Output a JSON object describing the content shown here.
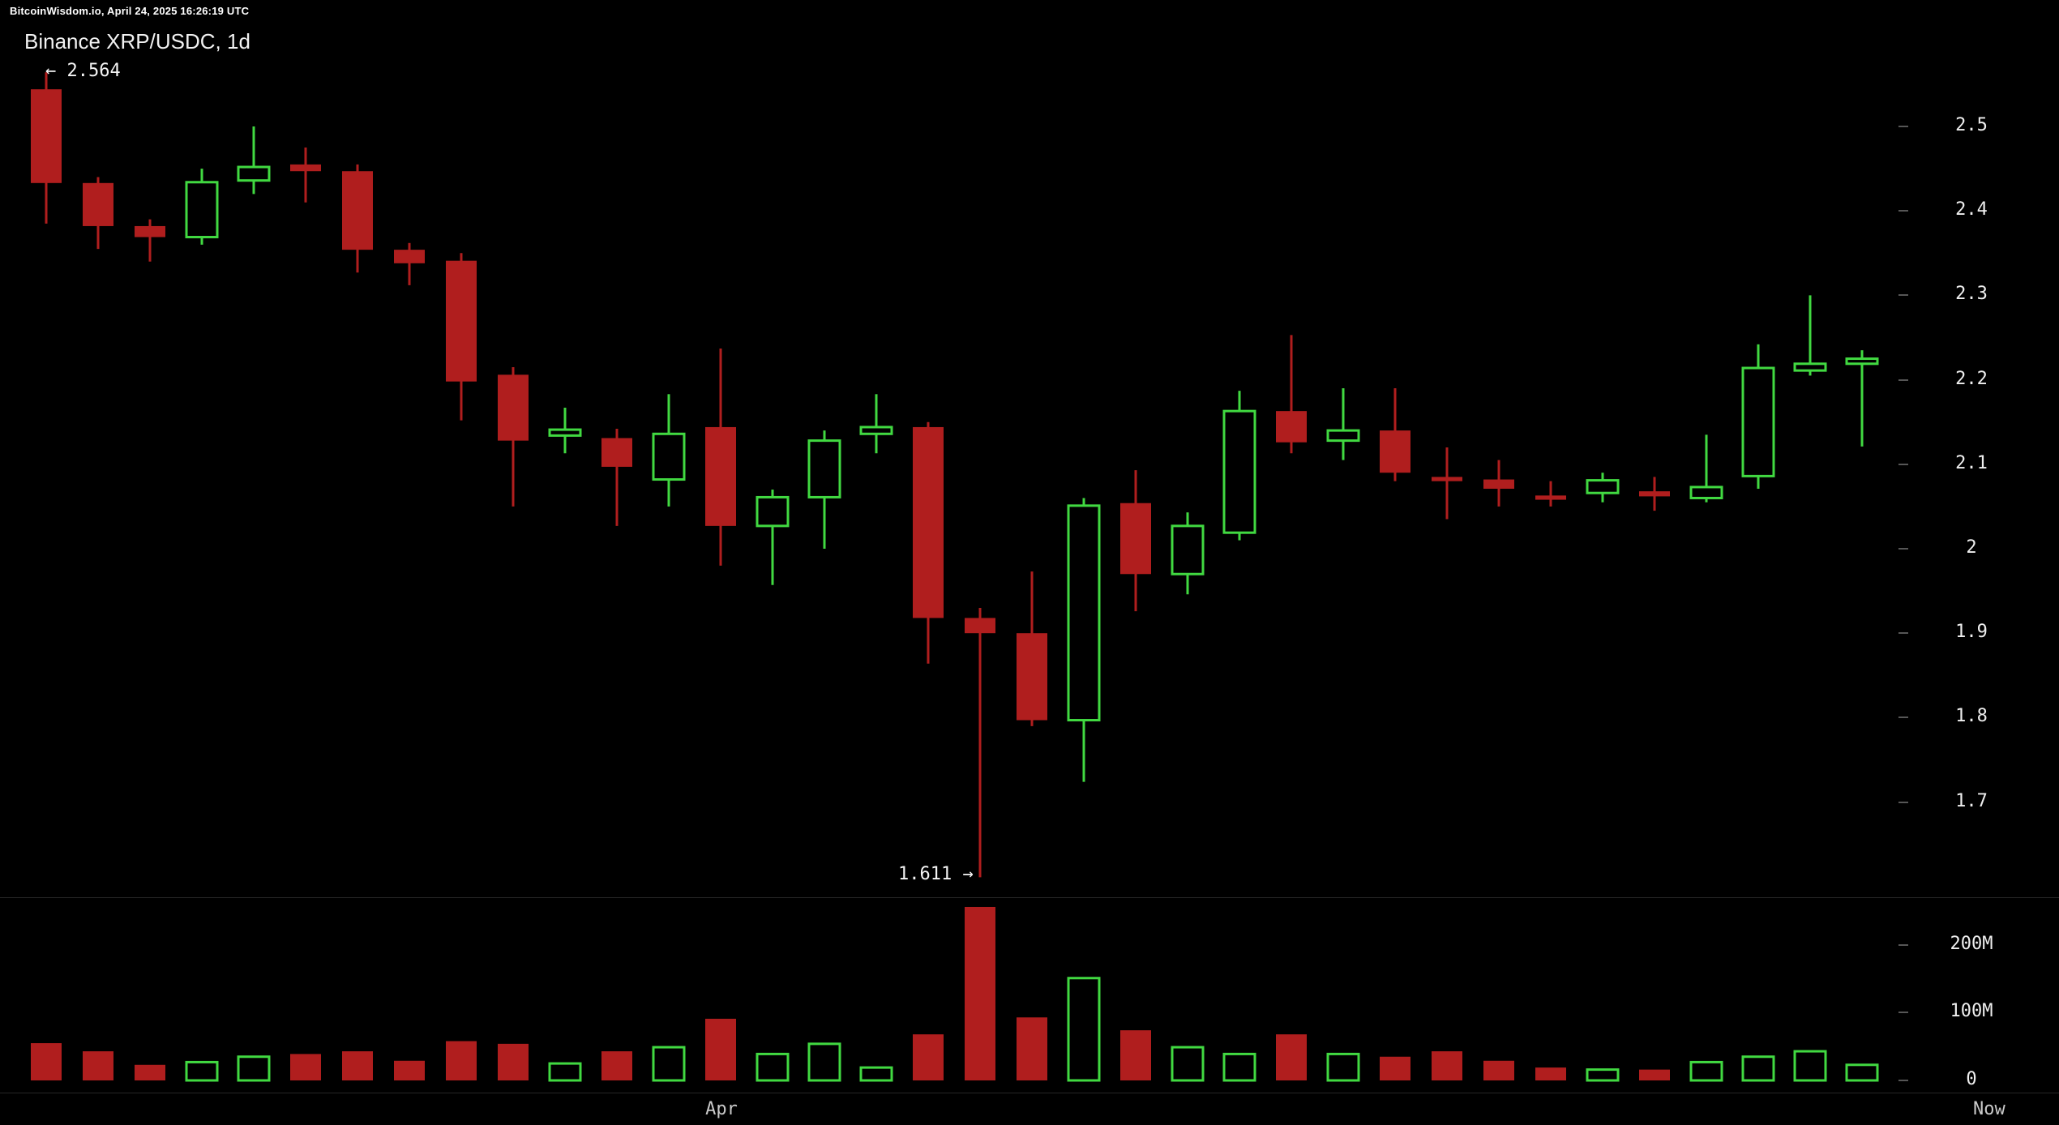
{
  "meta": {
    "status_bar": "BitcoinWisdom.io, April 24, 2025 16:26:19 UTC",
    "title": "Binance XRP/USDC, 1d"
  },
  "annotations": {
    "high_label": "← 2.564",
    "low_label": "1.611 →"
  },
  "axes": {
    "price_ticks": [
      {
        "label": "2.5",
        "value": 2.5
      },
      {
        "label": "2.4",
        "value": 2.4
      },
      {
        "label": "2.3",
        "value": 2.3
      },
      {
        "label": "2.2",
        "value": 2.2
      },
      {
        "label": "2.1",
        "value": 2.1
      },
      {
        "label": "2",
        "value": 2.0
      },
      {
        "label": "1.9",
        "value": 1.9
      },
      {
        "label": "1.8",
        "value": 1.8
      },
      {
        "label": "1.7",
        "value": 1.7
      }
    ],
    "volume_ticks": [
      {
        "label": "200M",
        "value_m": 200
      },
      {
        "label": "100M",
        "value_m": 100
      },
      {
        "label": "0",
        "value_m": 0
      }
    ],
    "month_label": "Apr",
    "now_label": "Now"
  },
  "colors": {
    "up": "#41d941",
    "down": "#b01e1e",
    "background": "#000000",
    "text": "#f2f2f2",
    "tick": "#565656",
    "divider": "#262626"
  },
  "chart_data": {
    "type": "candlestick+volume",
    "title": "Binance XRP/USDC, 1d",
    "exchange": "Binance",
    "pair": "XRP/USDC",
    "interval": "1d",
    "high_marker": 2.564,
    "low_marker": 1.611,
    "price_axis_range": [
      1.6,
      2.58
    ],
    "volume_axis_range_m": [
      0,
      260
    ],
    "legend_position": "none",
    "grid": false,
    "candles": [
      {
        "o": 2.544,
        "h": 2.564,
        "l": 2.385,
        "c": 2.433,
        "v_m": 55
      },
      {
        "o": 2.433,
        "h": 2.44,
        "l": 2.355,
        "c": 2.382,
        "v_m": 43
      },
      {
        "o": 2.382,
        "h": 2.39,
        "l": 2.34,
        "c": 2.369,
        "v_m": 23
      },
      {
        "o": 2.369,
        "h": 2.45,
        "l": 2.36,
        "c": 2.434,
        "v_m": 27
      },
      {
        "o": 2.436,
        "h": 2.5,
        "l": 2.42,
        "c": 2.452,
        "v_m": 35
      },
      {
        "o": 2.455,
        "h": 2.475,
        "l": 2.41,
        "c": 2.447,
        "v_m": 39
      },
      {
        "o": 2.447,
        "h": 2.455,
        "l": 2.327,
        "c": 2.354,
        "v_m": 43
      },
      {
        "o": 2.354,
        "h": 2.362,
        "l": 2.312,
        "c": 2.338,
        "v_m": 29
      },
      {
        "o": 2.341,
        "h": 2.35,
        "l": 2.152,
        "c": 2.198,
        "v_m": 58
      },
      {
        "o": 2.206,
        "h": 2.215,
        "l": 2.05,
        "c": 2.128,
        "v_m": 54
      },
      {
        "o": 2.134,
        "h": 2.167,
        "l": 2.113,
        "c": 2.141,
        "v_m": 25
      },
      {
        "o": 2.131,
        "h": 2.142,
        "l": 2.027,
        "c": 2.097,
        "v_m": 43
      },
      {
        "o": 2.082,
        "h": 2.183,
        "l": 2.05,
        "c": 2.136,
        "v_m": 49
      },
      {
        "o": 2.144,
        "h": 2.237,
        "l": 1.98,
        "c": 2.027,
        "v_m": 91
      },
      {
        "o": 2.027,
        "h": 2.07,
        "l": 1.957,
        "c": 2.061,
        "v_m": 39
      },
      {
        "o": 2.061,
        "h": 2.14,
        "l": 2.0,
        "c": 2.128,
        "v_m": 54
      },
      {
        "o": 2.136,
        "h": 2.183,
        "l": 2.113,
        "c": 2.144,
        "v_m": 19
      },
      {
        "o": 2.144,
        "h": 2.15,
        "l": 1.864,
        "c": 1.918,
        "v_m": 68
      },
      {
        "o": 1.918,
        "h": 1.93,
        "l": 1.611,
        "c": 1.9,
        "v_m": 256
      },
      {
        "o": 1.9,
        "h": 1.973,
        "l": 1.79,
        "c": 1.797,
        "v_m": 93
      },
      {
        "o": 1.797,
        "h": 2.06,
        "l": 1.724,
        "c": 2.051,
        "v_m": 151
      },
      {
        "o": 2.054,
        "h": 2.093,
        "l": 1.926,
        "c": 1.97,
        "v_m": 74
      },
      {
        "o": 1.97,
        "h": 2.043,
        "l": 1.946,
        "c": 2.027,
        "v_m": 49
      },
      {
        "o": 2.019,
        "h": 2.187,
        "l": 2.01,
        "c": 2.163,
        "v_m": 39
      },
      {
        "o": 2.163,
        "h": 2.253,
        "l": 2.113,
        "c": 2.126,
        "v_m": 68
      },
      {
        "o": 2.128,
        "h": 2.19,
        "l": 2.105,
        "c": 2.14,
        "v_m": 39
      },
      {
        "o": 2.14,
        "h": 2.19,
        "l": 2.08,
        "c": 2.09,
        "v_m": 35
      },
      {
        "o": 2.085,
        "h": 2.12,
        "l": 2.035,
        "c": 2.08,
        "v_m": 43
      },
      {
        "o": 2.082,
        "h": 2.105,
        "l": 2.05,
        "c": 2.071,
        "v_m": 29
      },
      {
        "o": 2.063,
        "h": 2.08,
        "l": 2.05,
        "c": 2.058,
        "v_m": 19
      },
      {
        "o": 2.066,
        "h": 2.09,
        "l": 2.055,
        "c": 2.081,
        "v_m": 16
      },
      {
        "o": 2.068,
        "h": 2.085,
        "l": 2.045,
        "c": 2.062,
        "v_m": 16
      },
      {
        "o": 2.06,
        "h": 2.135,
        "l": 2.055,
        "c": 2.073,
        "v_m": 27
      },
      {
        "o": 2.086,
        "h": 2.242,
        "l": 2.071,
        "c": 2.214,
        "v_m": 35
      },
      {
        "o": 2.211,
        "h": 2.3,
        "l": 2.205,
        "c": 2.219,
        "v_m": 43
      },
      {
        "o": 2.219,
        "h": 2.235,
        "l": 2.121,
        "c": 2.225,
        "v_m": 23
      }
    ]
  }
}
